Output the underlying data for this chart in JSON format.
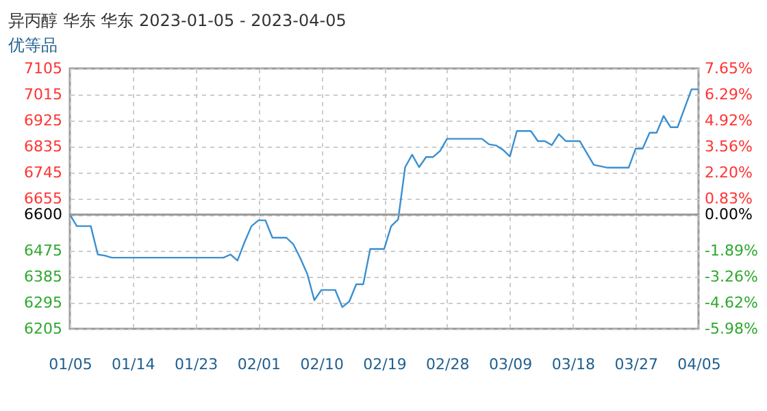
{
  "chart_data": {
    "type": "line",
    "title": "异丙醇 华东 华东 2023-01-05 - 2023-04-05",
    "subtitle": "优等品",
    "x": [
      "2023-01-05",
      "2023-01-06",
      "2023-01-08",
      "2023-01-09",
      "2023-01-10",
      "2023-01-11",
      "2023-01-27",
      "2023-01-28",
      "2023-01-29",
      "2023-01-30",
      "2023-01-31",
      "2023-02-01",
      "2023-02-02",
      "2023-02-03",
      "2023-02-05",
      "2023-02-06",
      "2023-02-07",
      "2023-02-08",
      "2023-02-09",
      "2023-02-10",
      "2023-02-12",
      "2023-02-13",
      "2023-02-14",
      "2023-02-15",
      "2023-02-16",
      "2023-02-17",
      "2023-02-19",
      "2023-02-20",
      "2023-02-21",
      "2023-02-22",
      "2023-02-23",
      "2023-02-24",
      "2023-02-25",
      "2023-02-26",
      "2023-02-27",
      "2023-02-28",
      "2023-03-05",
      "2023-03-06",
      "2023-03-07",
      "2023-03-08",
      "2023-03-09",
      "2023-03-10",
      "2023-03-12",
      "2023-03-13",
      "2023-03-14",
      "2023-03-15",
      "2023-03-16",
      "2023-03-17",
      "2023-03-19",
      "2023-03-21",
      "2023-03-23",
      "2023-03-26",
      "2023-03-27",
      "2023-03-28",
      "2023-03-29",
      "2023-03-30",
      "2023-03-31",
      "2023-04-01",
      "2023-04-02",
      "2023-04-04",
      "2023-04-05"
    ],
    "series": [
      {
        "color": "#3a8fd0",
        "values": [
          6600,
          6560,
          6560,
          6462,
          6458,
          6451,
          6451,
          6462,
          6441,
          6504,
          6560,
          6580,
          6580,
          6520,
          6520,
          6497,
          6449,
          6394,
          6304,
          6339,
          6339,
          6280,
          6299,
          6359,
          6359,
          6481,
          6481,
          6560,
          6583,
          6764,
          6807,
          6764,
          6799,
          6799,
          6820,
          6862,
          6862,
          6843,
          6839,
          6824,
          6801,
          6889,
          6889,
          6854,
          6854,
          6840,
          6878,
          6854,
          6854,
          6772,
          6762,
          6762,
          6828,
          6828,
          6883,
          6883,
          6941,
          6902,
          6902,
          7033,
          7033
        ]
      }
    ],
    "xlim": [
      "2023-01-05",
      "2023-04-05"
    ],
    "xticks": [
      {
        "value": "2023-01-05",
        "label": "01/05"
      },
      {
        "value": "2023-01-14",
        "label": "01/14"
      },
      {
        "value": "2023-01-23",
        "label": "01/23"
      },
      {
        "value": "2023-02-01",
        "label": "02/01"
      },
      {
        "value": "2023-02-10",
        "label": "02/10"
      },
      {
        "value": "2023-02-19",
        "label": "02/19"
      },
      {
        "value": "2023-02-28",
        "label": "02/28"
      },
      {
        "value": "2023-03-09",
        "label": "03/09"
      },
      {
        "value": "2023-03-18",
        "label": "03/18"
      },
      {
        "value": "2023-03-27",
        "label": "03/27"
      },
      {
        "value": "2023-04-05",
        "label": "04/05"
      }
    ],
    "ylim": [
      6205,
      7105
    ],
    "yticks": [
      6205,
      6295,
      6385,
      6475,
      6600,
      6655,
      6745,
      6835,
      6925,
      7015,
      7105
    ],
    "y2lim": [
      -5.98,
      7.65
    ],
    "y2ticks": [
      {
        "value": -5.98,
        "label": "-5.98%"
      },
      {
        "value": -4.62,
        "label": "-4.62%"
      },
      {
        "value": -3.26,
        "label": "-3.26%"
      },
      {
        "value": -1.89,
        "label": "-1.89%"
      },
      {
        "value": 0,
        "label": "0.00%"
      },
      {
        "value": 0.83,
        "label": "0.83%"
      },
      {
        "value": 2.2,
        "label": "2.20%"
      },
      {
        "value": 3.56,
        "label": "3.56%"
      },
      {
        "value": 4.92,
        "label": "4.92%"
      },
      {
        "value": 6.29,
        "label": "6.29%"
      },
      {
        "value": 7.65,
        "label": "7.65%"
      }
    ],
    "ref_lines": [
      {
        "axis": "y",
        "value": 6600,
        "color": "#999999"
      }
    ],
    "grid": true,
    "line_style": "solid",
    "marker": "none"
  }
}
